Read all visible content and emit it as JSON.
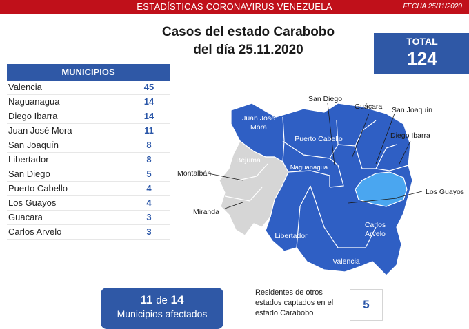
{
  "header": {
    "title": "ESTADÍSTICAS CORONAVIRUS VENEZUELA",
    "date": "FECHA 25/11/2020"
  },
  "main_title": {
    "line1": "Casos del estado Carabobo",
    "line2": "del día 25.11.2020"
  },
  "total": {
    "label": "TOTAL",
    "value": "124"
  },
  "municipios": {
    "header": "MUNICIPIOS",
    "rows": [
      {
        "name": "Valencia",
        "value": "45"
      },
      {
        "name": "Naguanagua",
        "value": "14"
      },
      {
        "name": "Diego Ibarra",
        "value": "14"
      },
      {
        "name": "Juan José Mora",
        "value": "11"
      },
      {
        "name": "San Joaquín",
        "value": "8"
      },
      {
        "name": "Libertador",
        "value": "8"
      },
      {
        "name": "San Diego",
        "value": "5"
      },
      {
        "name": "Puerto Cabello",
        "value": "4"
      },
      {
        "name": "Los Guayos",
        "value": "4"
      },
      {
        "name": "Guacara",
        "value": "3"
      },
      {
        "name": "Carlos Arvelo",
        "value": "3"
      }
    ]
  },
  "summary": {
    "affected": "11",
    "de": "de",
    "total": "14",
    "label": "Municipios afectados"
  },
  "residents": {
    "text": "Residentes de otros estados captados en el estado Carabobo",
    "value": "5"
  },
  "map": {
    "colors": {
      "affected": "#2f5fc4",
      "unaffected": "#d6d6d6",
      "highlight": "#4aa6f0",
      "border": "#ffffff"
    },
    "labels": {
      "juan_jose_mora": [
        "Juan José",
        "Mora"
      ],
      "puerto_cabello": "Puerto Cabello",
      "bejuma": "Bejuma",
      "naguanagua": "Naguanagua",
      "libertador": "Libertador",
      "carlos_arvelo": [
        "Carlos",
        "Arvelo"
      ],
      "valencia": "Valencia",
      "san_diego": "San Diego",
      "guacara": "Guácara",
      "san_joaquin": "San Joaquín",
      "diego_ibarra": "Diego Ibarra",
      "los_guayos": "Los Guayos",
      "montalban": "Montalbán",
      "miranda": "Miranda"
    }
  }
}
